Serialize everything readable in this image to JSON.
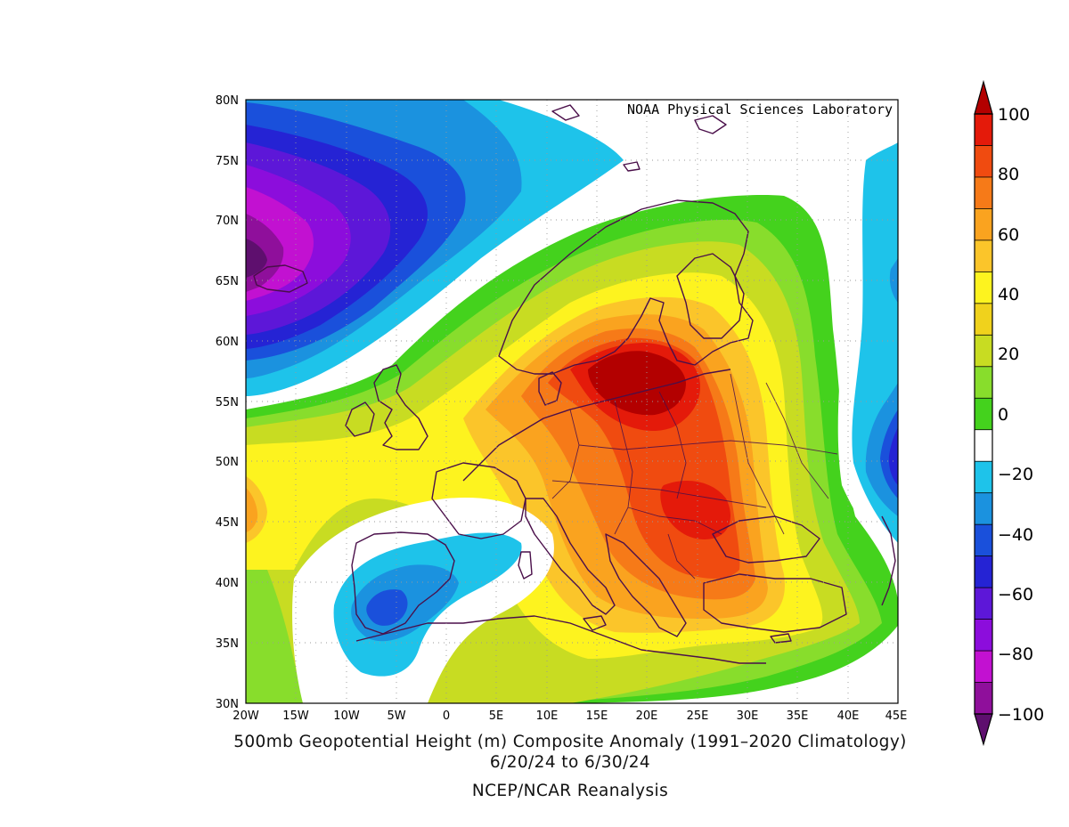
{
  "map": {
    "credit": "NOAA Physical Sciences Laboratory",
    "lat_labels": [
      "30N",
      "35N",
      "40N",
      "45N",
      "50N",
      "55N",
      "60N",
      "65N",
      "70N",
      "75N",
      "80N"
    ],
    "lon_labels": [
      "20W",
      "15W",
      "10W",
      "5W",
      "0",
      "5E",
      "10E",
      "15E",
      "20E",
      "25E",
      "30E",
      "35E",
      "40E",
      "45E"
    ],
    "lon_range": [
      -20,
      45
    ],
    "lat_range": [
      30,
      80
    ],
    "variable": "500mb geopotential height anomaly (m)",
    "anomaly_centers": [
      {
        "sign": "positive",
        "lon": 20,
        "lat": 57,
        "value": 100
      },
      {
        "sign": "positive",
        "lon": 27,
        "lat": 46,
        "value": 90
      },
      {
        "sign": "negative",
        "lon": -20,
        "lat": 67,
        "value": -100
      },
      {
        "sign": "negative",
        "lon": -6,
        "lat": 38,
        "value": -30
      },
      {
        "sign": "negative",
        "lon": 45,
        "lat": 50,
        "value": -40
      }
    ]
  },
  "colorbar": {
    "labels": [
      "100",
      "80",
      "60",
      "40",
      "20",
      "0",
      "−20",
      "−40",
      "−60",
      "−80",
      "−100"
    ],
    "levels": [
      {
        "range": ">100",
        "color": "#b30000"
      },
      {
        "range": "90 to 100",
        "color": "#e41a0a"
      },
      {
        "range": "80 to 90",
        "color": "#f04b10"
      },
      {
        "range": "70 to 80",
        "color": "#f67a18"
      },
      {
        "range": "60 to 70",
        "color": "#faa31f"
      },
      {
        "range": "50 to 60",
        "color": "#fbc52a"
      },
      {
        "range": "40 to 50",
        "color": "#fdf31f"
      },
      {
        "range": "30 to 40",
        "color": "#f0d21c"
      },
      {
        "range": "20 to 30",
        "color": "#c8dc22"
      },
      {
        "range": "10 to 20",
        "color": "#88dd2c"
      },
      {
        "range": "0 to 10",
        "color": "#44d21d"
      },
      {
        "range": "-10 to 0",
        "color": "#ffffff"
      },
      {
        "range": "-20 to -10",
        "color": "#1ec3ea"
      },
      {
        "range": "-30 to -20",
        "color": "#1b92df"
      },
      {
        "range": "-40 to -30",
        "color": "#1a50db"
      },
      {
        "range": "-50 to -40",
        "color": "#2523d4"
      },
      {
        "range": "-60 to -50",
        "color": "#5d17d8"
      },
      {
        "range": "-70 to -60",
        "color": "#8c0ddc"
      },
      {
        "range": "-80 to -70",
        "color": "#c211d1"
      },
      {
        "range": "-90 to -80",
        "color": "#8f0f9b"
      },
      {
        "range": "<-100",
        "color": "#5e0f6e"
      }
    ]
  },
  "caption": {
    "line1": "500mb Geopotential Height (m) Composite Anomaly (1991–2020 Climatology)",
    "line2": "6/20/24  to 6/30/24",
    "line3": "NCEP/NCAR Reanalysis"
  }
}
